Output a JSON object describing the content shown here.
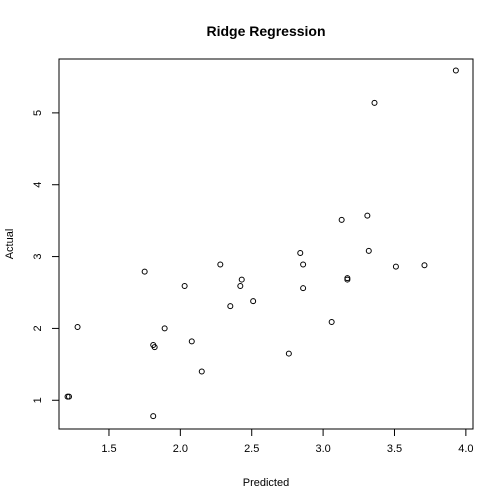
{
  "chart_data": {
    "type": "scatter",
    "title": "Ridge Regression",
    "xlabel": "Predicted",
    "ylabel": "Actual",
    "xlim": [
      1.15,
      4.05
    ],
    "ylim": [
      0.6,
      5.75
    ],
    "xticks": [
      1.5,
      2.0,
      2.5,
      3.0,
      3.5,
      4.0
    ],
    "xtick_labels": [
      "1.5",
      "2.0",
      "2.5",
      "3.0",
      "3.5",
      "4.0"
    ],
    "yticks": [
      1,
      2,
      3,
      4,
      5
    ],
    "ytick_labels": [
      "1",
      "2",
      "3",
      "4",
      "5"
    ],
    "grid": false,
    "points": [
      {
        "x": 1.21,
        "y": 1.05
      },
      {
        "x": 1.22,
        "y": 1.05
      },
      {
        "x": 1.28,
        "y": 2.02
      },
      {
        "x": 1.75,
        "y": 2.79
      },
      {
        "x": 1.81,
        "y": 1.77
      },
      {
        "x": 1.82,
        "y": 1.74
      },
      {
        "x": 1.81,
        "y": 0.78
      },
      {
        "x": 1.89,
        "y": 2.0
      },
      {
        "x": 2.03,
        "y": 2.59
      },
      {
        "x": 2.08,
        "y": 1.82
      },
      {
        "x": 2.15,
        "y": 1.4
      },
      {
        "x": 2.28,
        "y": 2.89
      },
      {
        "x": 2.35,
        "y": 2.31
      },
      {
        "x": 2.42,
        "y": 2.59
      },
      {
        "x": 2.43,
        "y": 2.68
      },
      {
        "x": 2.51,
        "y": 2.38
      },
      {
        "x": 2.76,
        "y": 1.65
      },
      {
        "x": 2.84,
        "y": 3.05
      },
      {
        "x": 2.86,
        "y": 2.89
      },
      {
        "x": 2.86,
        "y": 2.56
      },
      {
        "x": 3.06,
        "y": 2.09
      },
      {
        "x": 3.13,
        "y": 3.51
      },
      {
        "x": 3.17,
        "y": 2.7
      },
      {
        "x": 3.17,
        "y": 2.68
      },
      {
        "x": 3.31,
        "y": 3.57
      },
      {
        "x": 3.32,
        "y": 3.08
      },
      {
        "x": 3.36,
        "y": 5.14
      },
      {
        "x": 3.51,
        "y": 2.86
      },
      {
        "x": 3.71,
        "y": 2.88
      },
      {
        "x": 3.93,
        "y": 5.59
      }
    ]
  }
}
